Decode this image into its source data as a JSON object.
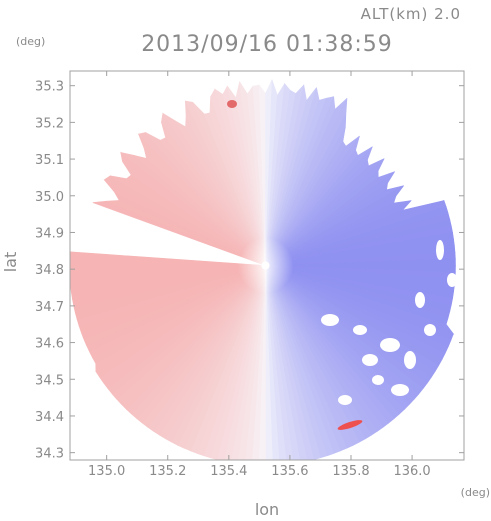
{
  "header": {
    "altitude_label": "ALT(km) 2.0",
    "timestamp": "2013/09/16 01:38:59"
  },
  "chart_data": {
    "type": "heatmap",
    "title": "2013/09/16 01:38:59",
    "subtitle": "ALT(km) 2.0",
    "xlabel": "lon",
    "ylabel": "lat",
    "x_unit": "(deg)",
    "y_unit": "(deg)",
    "xlim": [
      134.88,
      136.17
    ],
    "ylim": [
      34.28,
      35.34
    ],
    "xticks": [
      "135.0",
      "135.2",
      "135.4",
      "135.6",
      "135.8",
      "136.0"
    ],
    "yticks": [
      "34.3",
      "34.4",
      "34.5",
      "34.6",
      "34.7",
      "34.8",
      "34.9",
      "35.0",
      "35.1",
      "35.2",
      "35.3"
    ],
    "grid": false,
    "colormap": "diverging red-white-blue (red = west half, blue = east half)",
    "radar_center": {
      "lon": 135.52,
      "lat": 34.81
    },
    "colors": {
      "red": "#f6b0b0",
      "white": "#f7f7fb",
      "blue": "#8a8cf0",
      "axis": "#9a9a9a"
    }
  }
}
